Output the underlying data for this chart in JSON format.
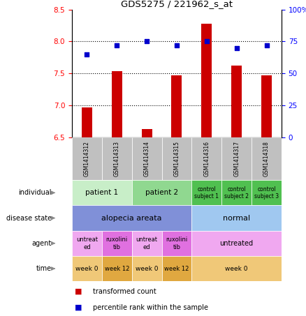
{
  "title": "GDS5275 / 221962_s_at",
  "samples": [
    "GSM1414312",
    "GSM1414313",
    "GSM1414314",
    "GSM1414315",
    "GSM1414316",
    "GSM1414317",
    "GSM1414318"
  ],
  "bar_values": [
    6.97,
    7.54,
    6.63,
    7.47,
    8.28,
    7.62,
    7.47
  ],
  "dot_values": [
    65,
    72,
    75,
    72,
    75,
    70,
    72
  ],
  "ylim_left": [
    6.5,
    8.5
  ],
  "ylim_right": [
    0,
    100
  ],
  "yticks_left": [
    6.5,
    7.0,
    7.5,
    8.0,
    8.5
  ],
  "yticks_right": [
    0,
    25,
    50,
    75,
    100
  ],
  "ytick_labels_right": [
    "0",
    "25",
    "50",
    "75",
    "100%"
  ],
  "bar_color": "#cc0000",
  "dot_color": "#0000cc",
  "header_bg": "#c0c0c0",
  "rows": {
    "individual": {
      "entries": [
        {
          "text": "patient 1",
          "span": [
            0,
            1
          ],
          "color": "#c8eec8",
          "fontsize": 7.5
        },
        {
          "text": "patient 2",
          "span": [
            2,
            3
          ],
          "color": "#90d890",
          "fontsize": 7.5
        },
        {
          "text": "control\nsubject 1",
          "span": [
            4,
            4
          ],
          "color": "#50c050",
          "fontsize": 5.5
        },
        {
          "text": "control\nsubject 2",
          "span": [
            5,
            5
          ],
          "color": "#50c050",
          "fontsize": 5.5
        },
        {
          "text": "control\nsubject 3",
          "span": [
            6,
            6
          ],
          "color": "#50c050",
          "fontsize": 5.5
        }
      ]
    },
    "disease_state": {
      "entries": [
        {
          "text": "alopecia areata",
          "span": [
            0,
            3
          ],
          "color": "#8090d8",
          "fontsize": 8
        },
        {
          "text": "normal",
          "span": [
            4,
            6
          ],
          "color": "#a0c8f0",
          "fontsize": 8
        }
      ]
    },
    "agent": {
      "entries": [
        {
          "text": "untreat\ned",
          "span": [
            0,
            0
          ],
          "color": "#f0a8f0",
          "fontsize": 6
        },
        {
          "text": "ruxolini\ntib",
          "span": [
            1,
            1
          ],
          "color": "#e070e0",
          "fontsize": 6
        },
        {
          "text": "untreat\ned",
          "span": [
            2,
            2
          ],
          "color": "#f0a8f0",
          "fontsize": 6
        },
        {
          "text": "ruxolini\ntib",
          "span": [
            3,
            3
          ],
          "color": "#e070e0",
          "fontsize": 6
        },
        {
          "text": "untreated",
          "span": [
            4,
            6
          ],
          "color": "#f0a8f0",
          "fontsize": 7
        }
      ]
    },
    "time": {
      "entries": [
        {
          "text": "week 0",
          "span": [
            0,
            0
          ],
          "color": "#f0c878",
          "fontsize": 6.5
        },
        {
          "text": "week 12",
          "span": [
            1,
            1
          ],
          "color": "#e0a840",
          "fontsize": 6
        },
        {
          "text": "week 0",
          "span": [
            2,
            2
          ],
          "color": "#f0c878",
          "fontsize": 6.5
        },
        {
          "text": "week 12",
          "span": [
            3,
            3
          ],
          "color": "#e0a840",
          "fontsize": 6
        },
        {
          "text": "week 0",
          "span": [
            4,
            6
          ],
          "color": "#f0c878",
          "fontsize": 6.5
        }
      ]
    }
  },
  "row_order": [
    "individual",
    "disease_state",
    "agent",
    "time"
  ],
  "row_labels": [
    "individual",
    "disease state",
    "agent",
    "time"
  ],
  "legend": [
    {
      "color": "#cc0000",
      "label": "transformed count"
    },
    {
      "color": "#0000cc",
      "label": "percentile rank within the sample"
    }
  ],
  "arrow_color": "#888888"
}
